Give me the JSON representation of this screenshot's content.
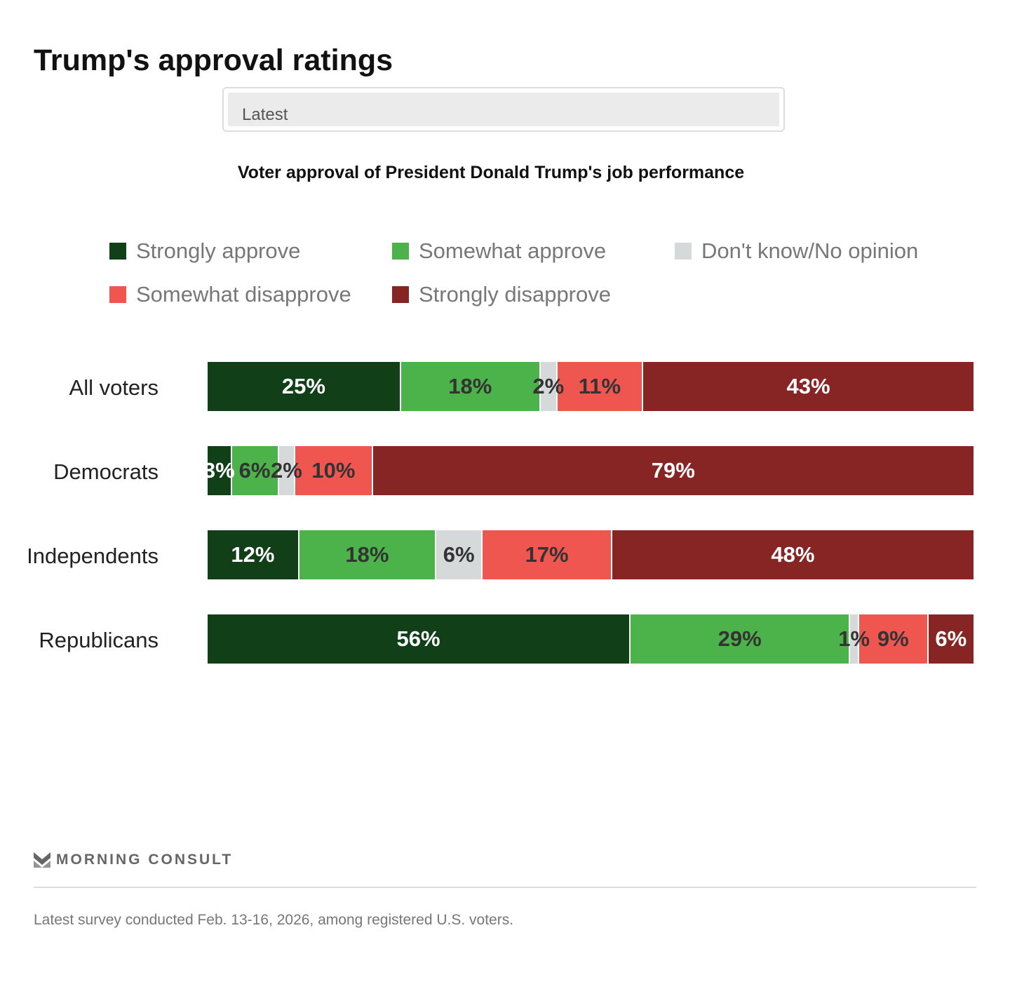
{
  "title": "Trump's approval ratings",
  "dropdown": {
    "selected": "Latest"
  },
  "brand": "MORNING CONSULT",
  "footnote": "Latest survey conducted Feb. 13-16, 2026, among registered U.S. voters.",
  "chart_data": {
    "type": "bar",
    "stacked": true,
    "orientation": "horizontal",
    "title": "Voter approval of President Donald Trump's job performance",
    "categories": [
      "All voters",
      "Democrats",
      "Independents",
      "Republicans"
    ],
    "series": [
      {
        "name": "Strongly approve",
        "color": "#113f18",
        "label_color": "#ffffff",
        "values": [
          25,
          3,
          12,
          56
        ]
      },
      {
        "name": "Somewhat approve",
        "color": "#4bb34a",
        "label_color": "#333333",
        "values": [
          18,
          6,
          18,
          29
        ]
      },
      {
        "name": "Don't know/No opinion",
        "color": "#d6d9da",
        "label_color": "#333333",
        "values": [
          2,
          2,
          6,
          1
        ]
      },
      {
        "name": "Somewhat disapprove",
        "color": "#f05650",
        "label_color": "#333333",
        "values": [
          11,
          10,
          17,
          9
        ]
      },
      {
        "name": "Strongly disapprove",
        "color": "#862524",
        "label_color": "#ffffff",
        "values": [
          43,
          79,
          48,
          6
        ]
      }
    ],
    "value_suffix": "%",
    "legend": "top"
  }
}
